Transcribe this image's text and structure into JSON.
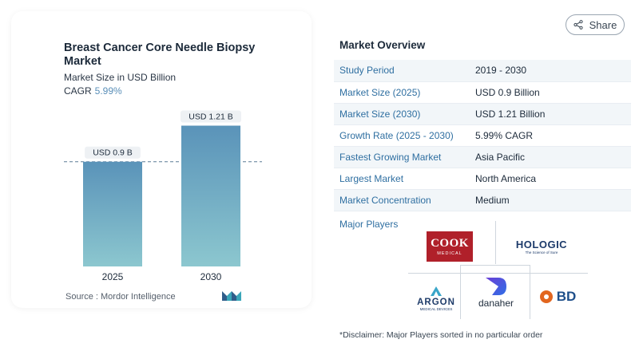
{
  "header": {
    "share_label": "Share",
    "share_icon": "share-icon"
  },
  "chart_data": {
    "type": "bar",
    "title": "Breast Cancer Core Needle Biopsy Market",
    "subtitle": "Market Size in USD Billion",
    "cagr_label": "CAGR",
    "cagr_value": "5.99%",
    "categories": [
      "2025",
      "2030"
    ],
    "values": [
      0.9,
      1.21
    ],
    "data_labels": [
      "USD 0.9 B",
      "USD 1.21 B"
    ],
    "ylim": [
      0,
      1.33
    ],
    "reference_line_value": 0.9,
    "colors": {
      "bar_top": "#5a93b9",
      "bar_bottom": "#8cc7cf"
    },
    "source": "Source :  Mordor Intelligence"
  },
  "overview": {
    "title": "Market Overview",
    "rows": [
      {
        "label": "Study Period",
        "value": "2019 - 2030"
      },
      {
        "label": "Market Size (2025)",
        "value": "USD 0.9 Billion"
      },
      {
        "label": "Market Size (2030)",
        "value": "USD 1.21 Billion"
      },
      {
        "label": "Growth Rate (2025 - 2030)",
        "value": "5.99% CAGR"
      },
      {
        "label": "Fastest Growing Market",
        "value": "Asia Pacific"
      },
      {
        "label": "Largest Market",
        "value": "North America"
      },
      {
        "label": "Market Concentration",
        "value": "Medium"
      }
    ]
  },
  "players": {
    "title": "Major Players",
    "cook": {
      "name": "COOK",
      "sub": "MEDICAL"
    },
    "hologic": {
      "name": "HOLOGIC",
      "sub": "The Science of Sure"
    },
    "argon": {
      "name": "ARGON",
      "sub": "MEDICAL DEVICES"
    },
    "danaher": {
      "name": "danaher"
    },
    "bd": {
      "name": "BD"
    }
  },
  "disclaimer": "*Disclaimer: Major Players sorted in no particular order"
}
